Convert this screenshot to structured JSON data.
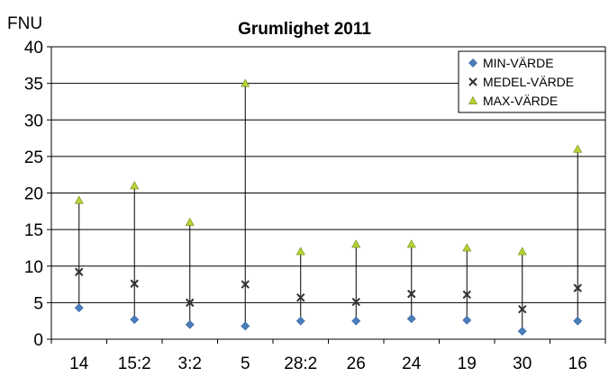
{
  "chart_data": {
    "type": "scatter",
    "title": "Grumlighet 2011",
    "ylabel": "FNU",
    "xlabel": "",
    "ylim": [
      0,
      40
    ],
    "yticks": [
      0,
      5,
      10,
      15,
      20,
      25,
      30,
      35,
      40
    ],
    "grid": "horizontal",
    "legend_position": "top-right",
    "categories": [
      "14",
      "15:2",
      "3:2",
      "5",
      "28:2",
      "26",
      "24",
      "19",
      "30",
      "16"
    ],
    "series": [
      {
        "name": "MIN-VÄRDE",
        "marker": "diamond",
        "color": "#4a7ebb",
        "values": [
          4.3,
          2.7,
          2.0,
          1.8,
          2.5,
          2.5,
          2.8,
          2.6,
          1.1,
          2.5
        ]
      },
      {
        "name": "MEDEL-VÄRDE",
        "marker": "x",
        "color": "#333333",
        "values": [
          9.2,
          7.6,
          5.0,
          7.5,
          5.7,
          5.1,
          6.2,
          6.1,
          4.1,
          7.0
        ]
      },
      {
        "name": "MAX-VÄRDE",
        "marker": "triangle",
        "color": "#b5d334",
        "values": [
          19.0,
          21.0,
          16.0,
          35.0,
          12.0,
          13.0,
          13.0,
          12.5,
          12.0,
          26.0
        ]
      }
    ]
  }
}
